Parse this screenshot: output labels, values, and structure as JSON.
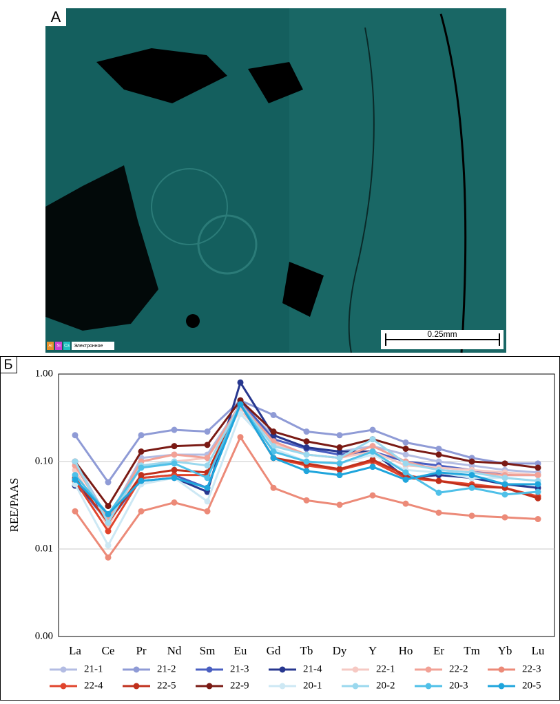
{
  "panel_a": {
    "label": "А",
    "scale_bar": "0.25mm",
    "element_legend": [
      "Al",
      "Si",
      "Ca",
      "Электронное"
    ]
  },
  "chart_data": {
    "type": "line",
    "panel_label": "Б",
    "y_label": "REE/PAAS",
    "log_scale": true,
    "grid": true,
    "categories": [
      "La",
      "Ce",
      "Pr",
      "Nd",
      "Sm",
      "Eu",
      "Gd",
      "Tb",
      "Dy",
      "Y",
      "Ho",
      "Er",
      "Tm",
      "Yb",
      "Lu"
    ],
    "ylim": [
      0.001,
      1
    ],
    "yticks": [
      {
        "value": 0.001,
        "label": "0.00"
      },
      {
        "value": 0.01,
        "label": "0.01"
      },
      {
        "value": 0.1,
        "label": "0.10"
      },
      {
        "value": 1,
        "label": "1.00"
      }
    ],
    "series": [
      {
        "name": "21-1",
        "color": "#b3bce3",
        "values": [
          0.1,
          0.022,
          0.11,
          0.12,
          0.12,
          0.45,
          0.2,
          0.14,
          0.13,
          0.15,
          0.12,
          0.1,
          0.09,
          0.08,
          0.075
        ]
      },
      {
        "name": "21-2",
        "color": "#8f9bd6",
        "values": [
          0.2,
          0.058,
          0.2,
          0.23,
          0.22,
          0.5,
          0.34,
          0.22,
          0.2,
          0.23,
          0.165,
          0.14,
          0.11,
          0.095,
          0.095
        ]
      },
      {
        "name": "21-3",
        "color": "#4a5fc1",
        "values": [
          0.06,
          0.02,
          0.065,
          0.07,
          0.05,
          0.5,
          0.18,
          0.14,
          0.12,
          0.13,
          0.1,
          0.09,
          0.08,
          0.07,
          0.07
        ]
      },
      {
        "name": "21-4",
        "color": "#27378f",
        "values": [
          0.053,
          0.025,
          0.06,
          0.065,
          0.045,
          0.8,
          0.2,
          0.145,
          0.13,
          0.13,
          0.065,
          0.07,
          0.065,
          0.055,
          0.05
        ]
      },
      {
        "name": "22-1",
        "color": "#f6c9c3",
        "values": [
          0.08,
          0.018,
          0.09,
          0.1,
          0.11,
          0.38,
          0.16,
          0.12,
          0.11,
          0.13,
          0.09,
          0.085,
          0.08,
          0.075,
          0.07
        ]
      },
      {
        "name": "22-2",
        "color": "#f2a196",
        "values": [
          0.09,
          0.022,
          0.1,
          0.12,
          0.11,
          0.45,
          0.17,
          0.12,
          0.11,
          0.15,
          0.1,
          0.08,
          0.075,
          0.07,
          0.07
        ]
      },
      {
        "name": "22-3",
        "color": "#ec8a78",
        "values": [
          0.027,
          0.008,
          0.027,
          0.034,
          0.027,
          0.19,
          0.05,
          0.036,
          0.032,
          0.041,
          0.033,
          0.026,
          0.024,
          0.023,
          0.022
        ]
      },
      {
        "name": "22-4",
        "color": "#e0442c",
        "values": [
          0.06,
          0.016,
          0.065,
          0.07,
          0.07,
          0.45,
          0.11,
          0.09,
          0.08,
          0.1,
          0.065,
          0.06,
          0.055,
          0.05,
          0.04
        ]
      },
      {
        "name": "22-5",
        "color": "#c0301c",
        "values": [
          0.065,
          0.02,
          0.07,
          0.08,
          0.075,
          0.45,
          0.11,
          0.095,
          0.082,
          0.105,
          0.07,
          0.06,
          0.052,
          0.05,
          0.038
        ]
      },
      {
        "name": "22-9",
        "color": "#7a1a14",
        "values": [
          0.1,
          0.031,
          0.13,
          0.15,
          0.155,
          0.5,
          0.22,
          0.17,
          0.145,
          0.18,
          0.14,
          0.12,
          0.1,
          0.095,
          0.085
        ]
      },
      {
        "name": "20-1",
        "color": "#cde8f4",
        "values": [
          0.055,
          0.011,
          0.055,
          0.065,
          0.035,
          0.35,
          0.14,
          0.1,
          0.095,
          0.12,
          0.08,
          0.075,
          0.065,
          0.065,
          0.06
        ]
      },
      {
        "name": "20-2",
        "color": "#9ad8ee",
        "values": [
          0.1,
          0.02,
          0.09,
          0.1,
          0.09,
          0.45,
          0.15,
          0.12,
          0.11,
          0.18,
          0.095,
          0.08,
          0.075,
          0.065,
          0.06
        ]
      },
      {
        "name": "20-3",
        "color": "#4fc0e8",
        "values": [
          0.07,
          0.025,
          0.085,
          0.095,
          0.065,
          0.45,
          0.13,
          0.1,
          0.095,
          0.13,
          0.075,
          0.044,
          0.05,
          0.042,
          0.045
        ]
      },
      {
        "name": "20-5",
        "color": "#1fa5dc",
        "values": [
          0.062,
          0.025,
          0.06,
          0.065,
          0.05,
          0.45,
          0.11,
          0.078,
          0.07,
          0.087,
          0.062,
          0.075,
          0.07,
          0.055,
          0.055
        ]
      }
    ]
  }
}
